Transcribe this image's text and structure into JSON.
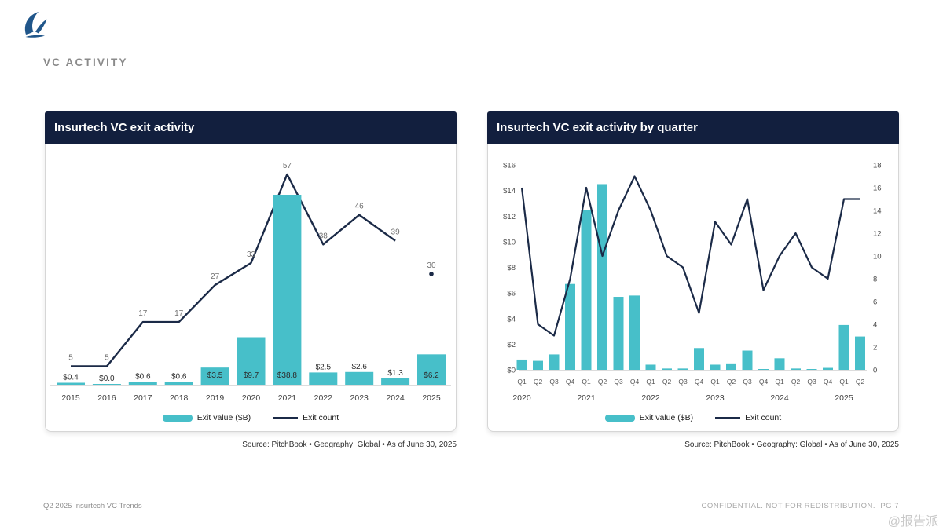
{
  "page": {
    "section_title": "VC ACTIVITY",
    "footer_left": "Q2 2025 Insurtech VC Trends",
    "footer_right": "CONFIDENTIAL. NOT FOR REDISTRIBUTION.  PG 7",
    "watermark": "@报告派",
    "logo": "sail-logo"
  },
  "colors": {
    "teal": "#47BFC9",
    "navy": "#1B2A47",
    "header_bg": "#121F3E"
  },
  "cards": [
    {
      "title": "Insurtech VC exit activity",
      "source": "Source: PitchBook • Geography: Global • As of June 30, 2025",
      "legend_bar": "Exit value ($B)",
      "legend_line": "Exit count"
    },
    {
      "title": "Insurtech VC exit activity by quarter",
      "source": "Source: PitchBook • Geography: Global • As of June 30, 2025",
      "legend_bar": "Exit value ($B)",
      "legend_line": "Exit count"
    }
  ],
  "chart_data": [
    {
      "type": "bar+line",
      "title": "Insurtech VC exit activity",
      "categories": [
        "2015",
        "2016",
        "2017",
        "2018",
        "2019",
        "2020",
        "2021",
        "2022",
        "2023",
        "2024",
        "2025"
      ],
      "series": [
        {
          "name": "Exit value ($B)",
          "kind": "bar",
          "values": [
            0.4,
            0.0,
            0.6,
            0.6,
            3.5,
            9.7,
            38.8,
            2.5,
            2.6,
            1.3,
            6.2
          ],
          "labels": [
            "$0.4",
            "$0.0",
            "$0.6",
            "$0.6",
            "$3.5",
            "$9.7",
            "$38.8",
            "$2.5",
            "$2.6",
            "$1.3",
            "$6.2"
          ]
        },
        {
          "name": "Exit count",
          "kind": "line",
          "values": [
            5,
            5,
            17,
            17,
            27,
            33,
            57,
            38,
            46,
            39,
            30
          ],
          "last_point_isolated": true
        }
      ],
      "grid": false,
      "axes_visible": false,
      "legend_position": "bottom"
    },
    {
      "type": "bar+line",
      "title": "Insurtech VC exit activity by quarter",
      "categories": [
        "Q1",
        "Q2",
        "Q3",
        "Q4",
        "Q1",
        "Q2",
        "Q3",
        "Q4",
        "Q1",
        "Q2",
        "Q3",
        "Q4",
        "Q1",
        "Q2",
        "Q3",
        "Q4",
        "Q1",
        "Q2",
        "Q3",
        "Q4",
        "Q1",
        "Q2"
      ],
      "year_groups": [
        {
          "label": "2020",
          "quarters": 4
        },
        {
          "label": "2021",
          "quarters": 4
        },
        {
          "label": "2022",
          "quarters": 4
        },
        {
          "label": "2023",
          "quarters": 4
        },
        {
          "label": "2024",
          "quarters": 4
        },
        {
          "label": "2025",
          "quarters": 2
        }
      ],
      "series": [
        {
          "name": "Exit value ($B)",
          "kind": "bar",
          "values": [
            0.8,
            0.7,
            1.2,
            6.7,
            12.5,
            14.5,
            5.7,
            5.8,
            0.4,
            0.1,
            0.1,
            1.7,
            0.4,
            0.5,
            1.5,
            0.05,
            0.9,
            0.1,
            0.05,
            0.15,
            3.5,
            2.6
          ]
        },
        {
          "name": "Exit count",
          "kind": "line",
          "values": [
            16,
            4,
            3,
            8,
            16,
            10,
            14,
            17,
            14,
            10,
            9,
            5,
            13,
            11,
            15,
            7,
            10,
            12,
            9,
            8,
            15,
            15
          ]
        }
      ],
      "left_axis": {
        "title": "Exit value ($B)",
        "min": 0,
        "max": 16,
        "step": 2,
        "ticks": [
          "$0",
          "$2",
          "$4",
          "$6",
          "$8",
          "$10",
          "$12",
          "$14",
          "$16"
        ]
      },
      "right_axis": {
        "title": "Exit count",
        "min": 0,
        "max": 18,
        "step": 2,
        "ticks": [
          "0",
          "2",
          "4",
          "6",
          "8",
          "10",
          "12",
          "14",
          "16",
          "18"
        ]
      },
      "grid": false,
      "legend_position": "bottom"
    }
  ]
}
